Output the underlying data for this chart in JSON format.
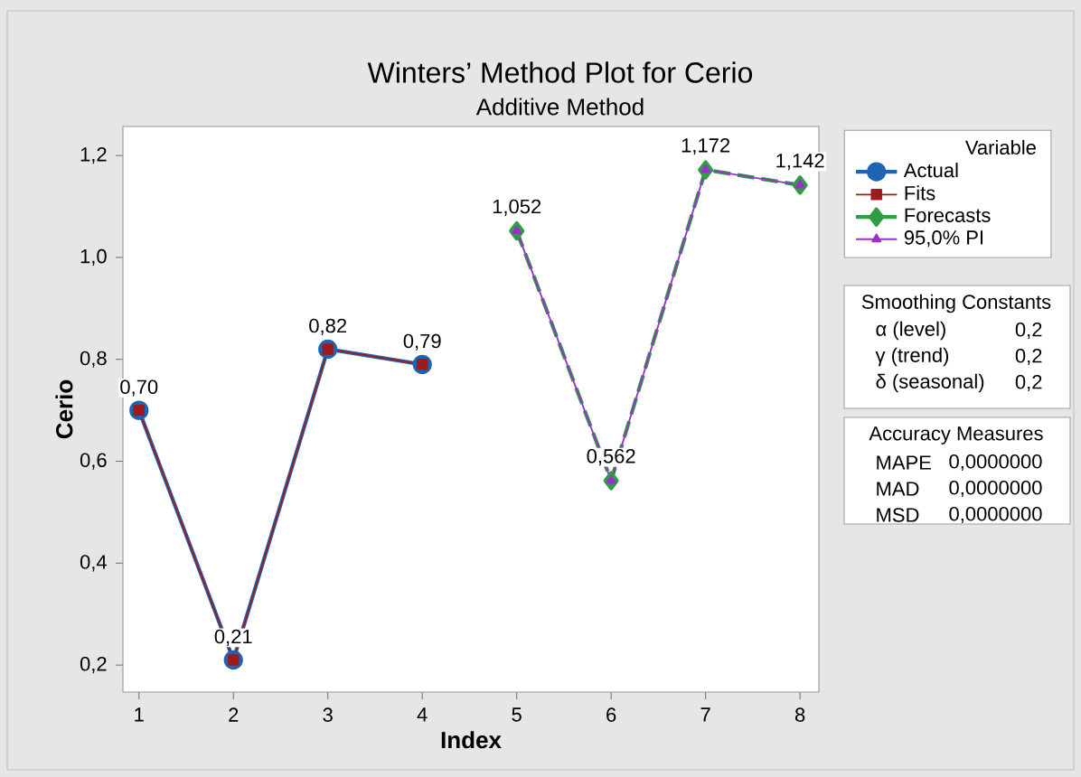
{
  "chart_data": {
    "type": "line",
    "title": "Winters’ Method Plot for Cerio",
    "subtitle": "Additive Method",
    "xlabel": "Index",
    "ylabel": "Cerio",
    "legend_title": "Variable",
    "legend": "right",
    "xlim": [
      0.83,
      8.2
    ],
    "xticks": [
      1,
      2,
      3,
      4,
      5,
      6,
      7,
      8
    ],
    "ylim": [
      0.147,
      1.257
    ],
    "yticks": [
      {
        "value": 0.2,
        "label": "0,2"
      },
      {
        "value": 0.4,
        "label": "0,4"
      },
      {
        "value": 0.6,
        "label": "0,6"
      },
      {
        "value": 0.8,
        "label": "0,8"
      },
      {
        "value": 1.0,
        "label": "1,0"
      },
      {
        "value": 1.2,
        "label": "1,2"
      }
    ],
    "series": [
      {
        "name": "Actual",
        "color": "#1f64b4",
        "marker": "circle",
        "line_style": "solid",
        "x": [
          1,
          2,
          3,
          4
        ],
        "values": [
          0.7,
          0.21,
          0.82,
          0.79
        ]
      },
      {
        "name": "Fits",
        "color": "#9b1c1c",
        "marker": "square",
        "line_style": "solid",
        "x": [
          1,
          2,
          3,
          4
        ],
        "values": [
          0.7,
          0.21,
          0.82,
          0.79
        ],
        "value_labels": [
          "0,70",
          "0,21",
          "0,82",
          "0,79"
        ]
      },
      {
        "name": "Forecasts",
        "color": "#2e9e45",
        "marker": "diamond",
        "line_style": "dashed",
        "x": [
          5,
          6,
          7,
          8
        ],
        "values": [
          1.052,
          0.562,
          1.172,
          1.142
        ],
        "value_labels": [
          "1,052",
          "0,562",
          "1,172",
          "1,142"
        ]
      },
      {
        "name": "95,0% PI",
        "color": "#9b30c8",
        "marker": "triangle",
        "line_style": "solid",
        "x": [
          5,
          6,
          7,
          8
        ],
        "values": [
          1.052,
          0.562,
          1.172,
          1.142
        ]
      }
    ],
    "annotations": [
      "Smoothing Constants",
      "α (level)",
      "0,2",
      "γ (trend)",
      "0,2",
      "δ (seasonal)",
      "0,2",
      "Accuracy Measures",
      "MAPE",
      "0,0000000",
      "MAD",
      "0,0000000",
      "MSD",
      "0,0000000"
    ]
  }
}
